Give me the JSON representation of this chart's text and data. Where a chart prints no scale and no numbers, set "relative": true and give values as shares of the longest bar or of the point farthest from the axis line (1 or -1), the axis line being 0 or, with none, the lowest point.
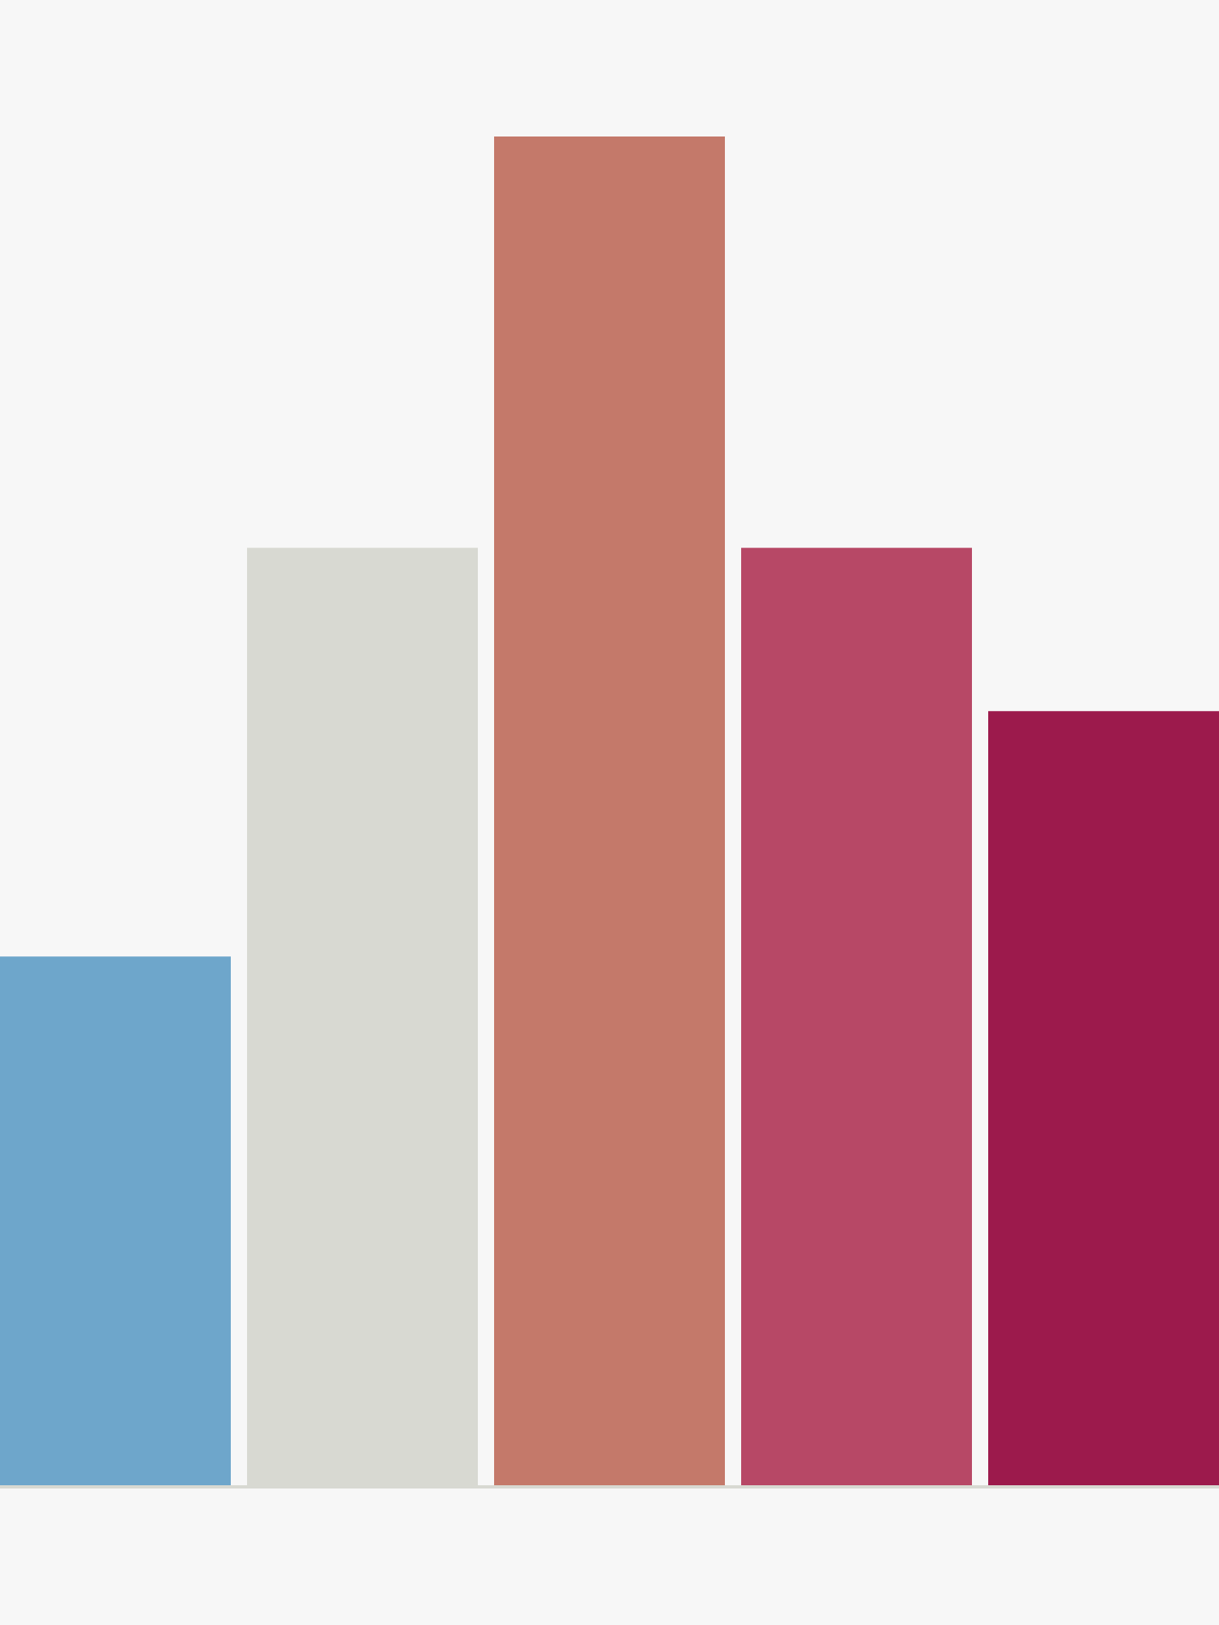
{
  "chart_data": {
    "type": "bar",
    "relative": true,
    "categories": [
      null,
      null,
      null,
      null,
      null
    ],
    "values": [
      0.392,
      0.695,
      1,
      0.695,
      0.574
    ],
    "colors": [
      "#6ea6cb",
      "#d8d9d2",
      "#c4796a",
      "#b74866",
      "#9c1a4c"
    ]
  }
}
